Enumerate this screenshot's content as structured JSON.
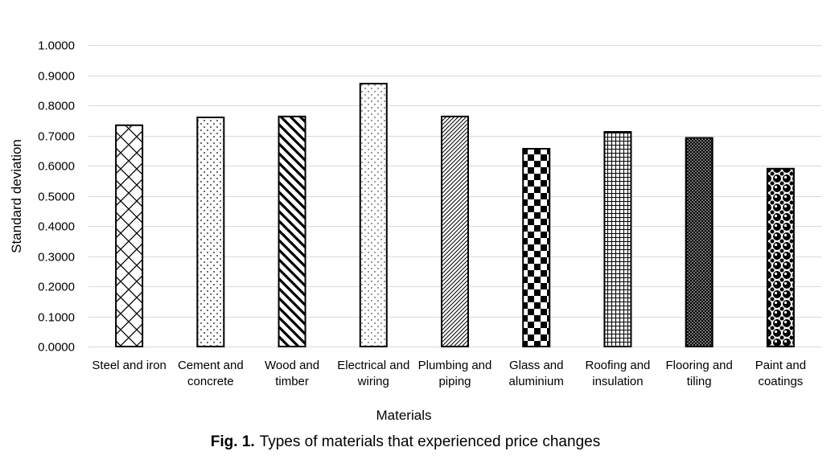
{
  "chart_data": {
    "type": "bar",
    "title": "",
    "xlabel": "Materials",
    "ylabel": "Standard deviation",
    "ylim": [
      0,
      1
    ],
    "ytick_step": 0.1,
    "ytick_decimals": 4,
    "grid": true,
    "legend": "none",
    "categories": [
      [
        "Steel and iron"
      ],
      [
        "Cement and",
        "concrete"
      ],
      [
        "Wood and",
        "timber"
      ],
      [
        "Electrical and",
        "wiring"
      ],
      [
        "Plumbing and",
        "piping"
      ],
      [
        "Glass and",
        "aluminium"
      ],
      [
        "Roofing and",
        "insulation"
      ],
      [
        "Flooring and",
        "tiling"
      ],
      [
        "Paint and",
        "coatings"
      ]
    ],
    "values": [
      0.734,
      0.76,
      0.763,
      0.872,
      0.763,
      0.656,
      0.712,
      0.692,
      0.59
    ],
    "patterns": [
      "diagonal-crosshatch",
      "sparse-dots",
      "wide-downward-diagonal",
      "fine-dots",
      "narrow-upward-diagonal",
      "large-checkerboard",
      "small-grid",
      "dense-dots",
      "sphere"
    ],
    "colors": {
      "bar_stroke": "#000000",
      "bar_fill": "#ffffff",
      "pattern_ink": "#000000",
      "gridline": "#d9d9d9"
    }
  },
  "caption": {
    "prefix": "Fig. 1.",
    "text": "Types of materials that experienced price changes"
  }
}
